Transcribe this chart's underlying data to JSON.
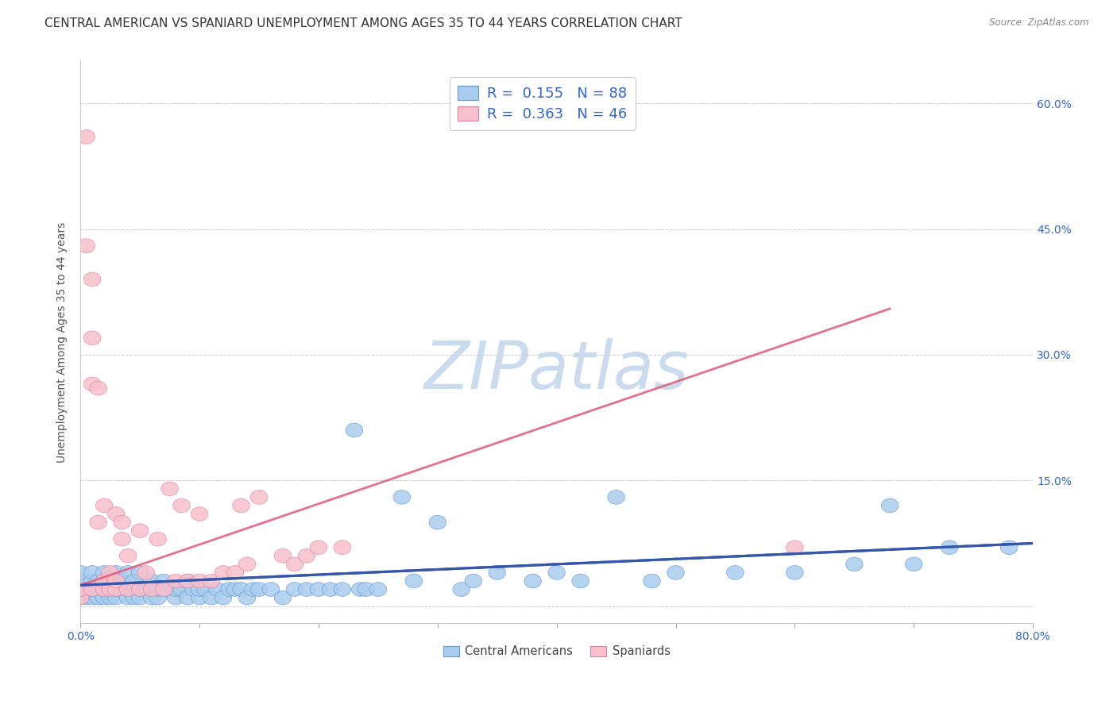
{
  "title": "CENTRAL AMERICAN VS SPANIARD UNEMPLOYMENT AMONG AGES 35 TO 44 YEARS CORRELATION CHART",
  "source": "Source: ZipAtlas.com",
  "xlim": [
    0.0,
    0.8
  ],
  "ylim": [
    -0.02,
    0.65
  ],
  "watermark": "ZIPatlas",
  "series": [
    {
      "label": "Central Americans",
      "R": "0.155",
      "N": "88",
      "color": "#aaccee",
      "edge_color": "#6699cc",
      "trend_color": "#3355aa",
      "x": [
        0.0,
        0.0,
        0.0,
        0.005,
        0.005,
        0.01,
        0.01,
        0.01,
        0.01,
        0.01,
        0.015,
        0.015,
        0.02,
        0.02,
        0.02,
        0.02,
        0.025,
        0.025,
        0.03,
        0.03,
        0.03,
        0.03,
        0.035,
        0.035,
        0.04,
        0.04,
        0.04,
        0.045,
        0.045,
        0.05,
        0.05,
        0.05,
        0.055,
        0.06,
        0.06,
        0.065,
        0.065,
        0.07,
        0.07,
        0.075,
        0.08,
        0.08,
        0.085,
        0.09,
        0.09,
        0.095,
        0.1,
        0.1,
        0.105,
        0.11,
        0.115,
        0.12,
        0.125,
        0.13,
        0.135,
        0.14,
        0.145,
        0.15,
        0.16,
        0.17,
        0.18,
        0.19,
        0.2,
        0.21,
        0.22,
        0.23,
        0.235,
        0.24,
        0.25,
        0.27,
        0.28,
        0.3,
        0.32,
        0.33,
        0.35,
        0.38,
        0.4,
        0.42,
        0.45,
        0.48,
        0.5,
        0.55,
        0.6,
        0.65,
        0.68,
        0.7,
        0.73,
        0.78
      ],
      "y": [
        0.02,
        0.03,
        0.04,
        0.01,
        0.02,
        0.01,
        0.02,
        0.02,
        0.03,
        0.04,
        0.01,
        0.03,
        0.01,
        0.02,
        0.03,
        0.04,
        0.01,
        0.02,
        0.01,
        0.02,
        0.03,
        0.04,
        0.02,
        0.03,
        0.01,
        0.02,
        0.04,
        0.01,
        0.03,
        0.01,
        0.02,
        0.04,
        0.02,
        0.01,
        0.03,
        0.01,
        0.02,
        0.02,
        0.03,
        0.02,
        0.01,
        0.02,
        0.02,
        0.01,
        0.03,
        0.02,
        0.01,
        0.02,
        0.02,
        0.01,
        0.02,
        0.01,
        0.02,
        0.02,
        0.02,
        0.01,
        0.02,
        0.02,
        0.02,
        0.01,
        0.02,
        0.02,
        0.02,
        0.02,
        0.02,
        0.21,
        0.02,
        0.02,
        0.02,
        0.13,
        0.03,
        0.1,
        0.02,
        0.03,
        0.04,
        0.03,
        0.04,
        0.03,
        0.13,
        0.03,
        0.04,
        0.04,
        0.04,
        0.05,
        0.12,
        0.05,
        0.07,
        0.07
      ],
      "trend_x": [
        0.0,
        0.8
      ],
      "trend_y": [
        0.025,
        0.075
      ],
      "trend_dashed": false,
      "trend_linewidth": 2.2
    },
    {
      "label": "Spaniards",
      "R": "0.363",
      "N": "46",
      "color": "#f7c0cc",
      "edge_color": "#e080a0",
      "trend_color": "#e06080",
      "x": [
        0.0,
        0.0,
        0.005,
        0.005,
        0.01,
        0.01,
        0.01,
        0.01,
        0.015,
        0.015,
        0.02,
        0.02,
        0.02,
        0.025,
        0.025,
        0.03,
        0.03,
        0.03,
        0.035,
        0.035,
        0.04,
        0.04,
        0.05,
        0.05,
        0.055,
        0.06,
        0.065,
        0.07,
        0.075,
        0.08,
        0.085,
        0.09,
        0.1,
        0.1,
        0.11,
        0.12,
        0.13,
        0.135,
        0.14,
        0.15,
        0.17,
        0.18,
        0.19,
        0.2,
        0.22,
        0.6
      ],
      "y": [
        0.01,
        0.02,
        0.43,
        0.56,
        0.02,
        0.265,
        0.32,
        0.39,
        0.1,
        0.26,
        0.02,
        0.03,
        0.12,
        0.02,
        0.04,
        0.02,
        0.03,
        0.11,
        0.08,
        0.1,
        0.02,
        0.06,
        0.02,
        0.09,
        0.04,
        0.02,
        0.08,
        0.02,
        0.14,
        0.03,
        0.12,
        0.03,
        0.03,
        0.11,
        0.03,
        0.04,
        0.04,
        0.12,
        0.05,
        0.13,
        0.06,
        0.05,
        0.06,
        0.07,
        0.07,
        0.07
      ],
      "trend_x": [
        0.0,
        0.68
      ],
      "trend_y": [
        0.025,
        0.355
      ],
      "trend_dashed": false,
      "trend_linewidth": 2.0
    }
  ],
  "ytick_positions": [
    0.0,
    0.15,
    0.3,
    0.45,
    0.6
  ],
  "ytick_labels": [
    "",
    "15.0%",
    "30.0%",
    "45.0%",
    "60.0%"
  ],
  "xtick_positions": [
    0.0,
    0.1,
    0.2,
    0.3,
    0.4,
    0.5,
    0.6,
    0.7,
    0.8
  ],
  "xtick_labels": [
    "0.0%",
    "",
    "",
    "",
    "",
    "",
    "",
    "",
    "80.0%"
  ],
  "background_color": "#ffffff",
  "grid_color": "#cccccc",
  "title_fontsize": 11,
  "axis_label_fontsize": 10,
  "tick_fontsize": 10,
  "watermark_color": "#c5d8ec",
  "watermark_fontsize": 60,
  "legend_fontsize": 13,
  "legend_text_color": "#3366cc",
  "legend_r_n_color": "#3366cc"
}
